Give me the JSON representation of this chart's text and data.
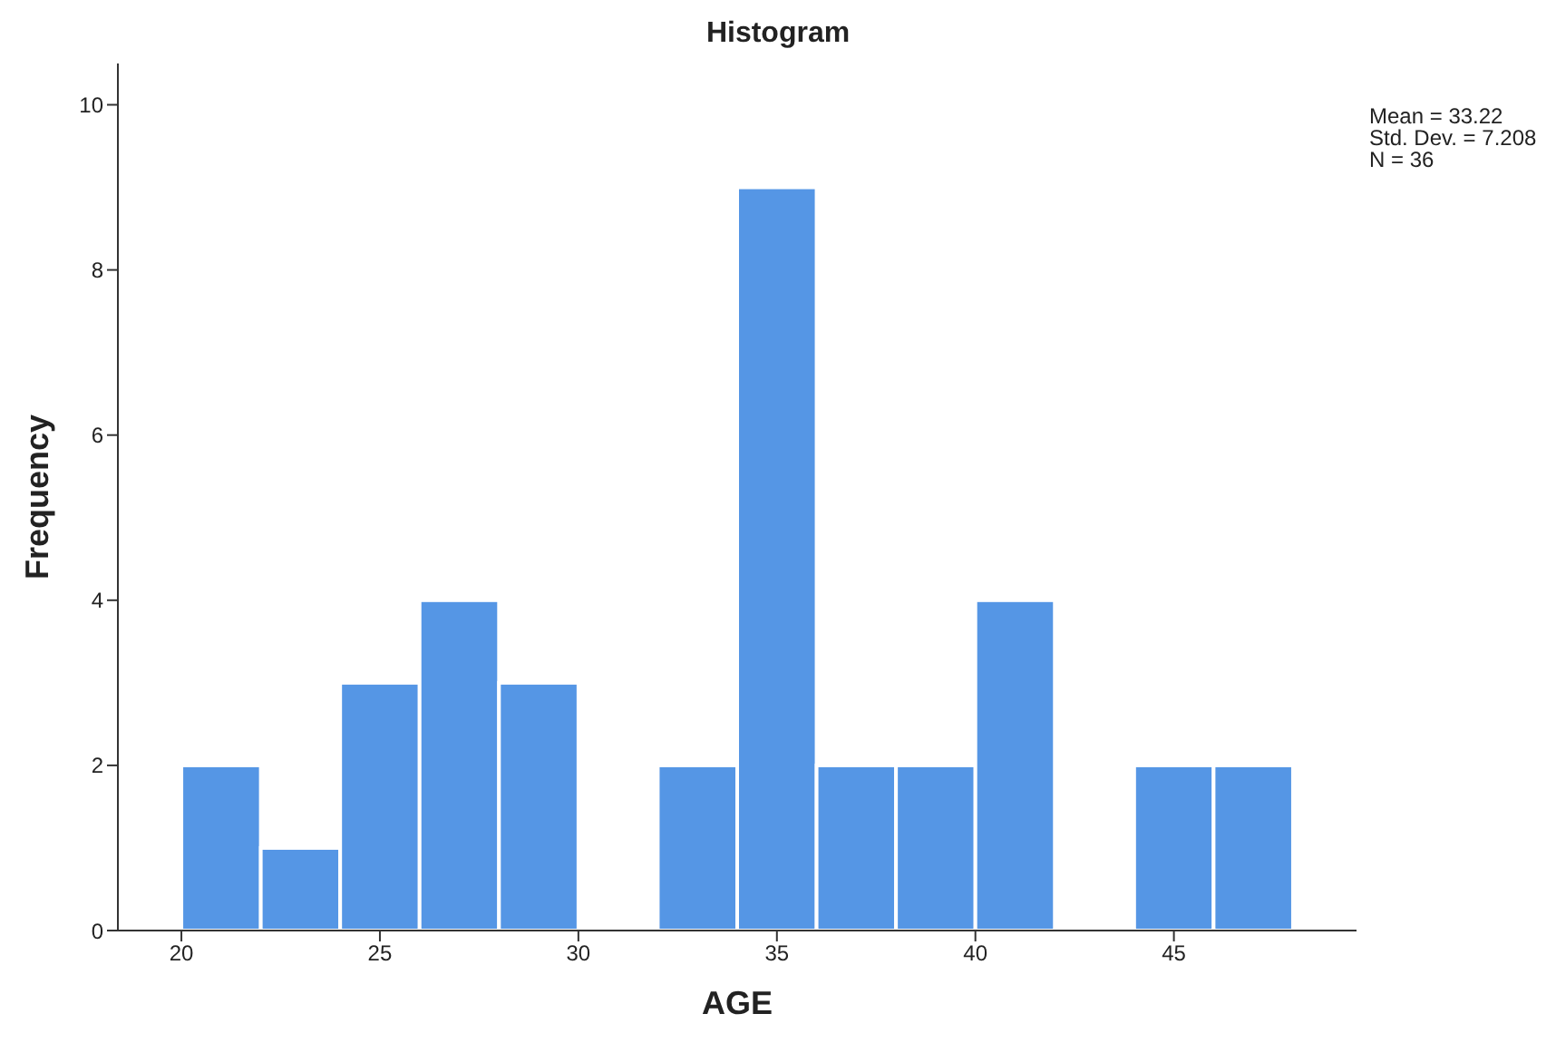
{
  "chart_data": {
    "type": "histogram",
    "title": "Histogram",
    "xlabel": "AGE",
    "ylabel": "Frequency",
    "bins": [
      20,
      22,
      24,
      26,
      28,
      30,
      32,
      34,
      36,
      38,
      40,
      42,
      44,
      46,
      48
    ],
    "values": [
      2,
      1,
      3,
      4,
      3,
      0,
      2,
      9,
      2,
      2,
      4,
      0,
      2,
      2
    ],
    "color": "#5596e5",
    "xlim": [
      18.4,
      49.6
    ],
    "xticks": [
      20,
      25,
      30,
      35,
      40,
      45
    ],
    "ylim": [
      0,
      10.5
    ],
    "yticks": [
      0,
      2,
      4,
      6,
      8,
      10
    ],
    "grid": false,
    "legend": false,
    "annotations": [
      "Mean = 33.22",
      "Std. Dev. = 7.208",
      "N = 36"
    ]
  }
}
